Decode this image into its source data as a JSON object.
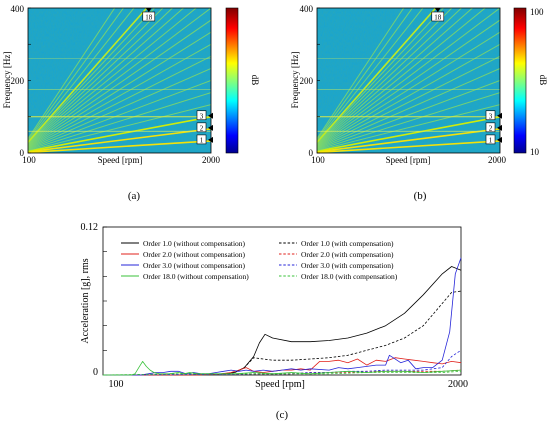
{
  "chart_data": [
    {
      "type": "heatmap",
      "panel_label": "(a)",
      "xlabel": "Speed [rpm]",
      "ylabel": "Frequency [Hz]",
      "xlim": [
        100,
        2000
      ],
      "ylim": [
        0,
        400
      ],
      "x_ticks": [
        "100",
        "2000"
      ],
      "y_ticks": [
        "0",
        "200",
        "400"
      ],
      "colorbar": {
        "label": "dB",
        "ticks": [],
        "colormap": "jet"
      },
      "order_markers": [
        "1",
        "2",
        "3",
        "18"
      ]
    },
    {
      "type": "heatmap",
      "panel_label": "(b)",
      "xlabel": "Speed [rpm]",
      "ylabel": "Frequency [Hz]",
      "xlim": [
        100,
        2000
      ],
      "ylim": [
        0,
        400
      ],
      "x_ticks": [
        "100",
        "2000"
      ],
      "y_ticks": [
        "0",
        "200",
        "400"
      ],
      "colorbar": {
        "label": "dB",
        "ticks": [
          "10",
          "100"
        ],
        "colormap": "jet"
      },
      "order_markers": [
        "1",
        "2",
        "3",
        "18"
      ]
    },
    {
      "type": "line",
      "panel_label": "(c)",
      "xlabel": "Speed [rpm]",
      "ylabel": "Acceleration [g], rms",
      "xlim": [
        100,
        2000
      ],
      "ylim": [
        0,
        0.12
      ],
      "x_ticks": [
        "100",
        "2000"
      ],
      "y_ticks": [
        "0",
        "0.12"
      ],
      "legend_position": "top-left",
      "series": [
        {
          "name": "Order 1.0 (without compensation)",
          "color": "#000000",
          "dashed": false,
          "x": [
            100,
            500,
            700,
            800,
            850,
            900,
            930,
            960,
            1000,
            1100,
            1200,
            1300,
            1400,
            1500,
            1600,
            1700,
            1800,
            1900,
            1950,
            2000
          ],
          "y": [
            0,
            0,
            0.0005,
            0.002,
            0.006,
            0.015,
            0.026,
            0.033,
            0.03,
            0.027,
            0.027,
            0.028,
            0.03,
            0.034,
            0.04,
            0.05,
            0.065,
            0.082,
            0.088,
            0.085
          ]
        },
        {
          "name": "Order 1.0 (with compensation)",
          "color": "#000000",
          "dashed": true,
          "x": [
            100,
            500,
            700,
            800,
            850,
            900,
            950,
            1000,
            1100,
            1200,
            1300,
            1400,
            1500,
            1600,
            1700,
            1800,
            1900,
            1950,
            2000
          ],
          "y": [
            0,
            0,
            0.0005,
            0.002,
            0.006,
            0.014,
            0.013,
            0.012,
            0.012,
            0.013,
            0.014,
            0.016,
            0.02,
            0.024,
            0.03,
            0.04,
            0.058,
            0.067,
            0.068
          ]
        },
        {
          "name": "Order 2.0 (without compensation)",
          "color": "#e0201b",
          "dashed": false,
          "x": [
            100,
            600,
            700,
            780,
            820,
            860,
            900,
            950,
            1000,
            1050,
            1100,
            1150,
            1200,
            1250,
            1300,
            1350,
            1400,
            1450,
            1500,
            1550,
            1600,
            1650,
            1700,
            1750,
            1800,
            1850,
            1900,
            1950,
            2000
          ],
          "y": [
            0,
            0,
            0.0005,
            0.002,
            0.004,
            0.006,
            0.003,
            0.002,
            0.003,
            0.004,
            0.004,
            0.005,
            0.004,
            0.011,
            0.011,
            0.012,
            0.01,
            0.013,
            0.008,
            0.012,
            0.011,
            0.014,
            0.013,
            0.012,
            0.011,
            0.01,
            0.009,
            0.011,
            0.01
          ]
        },
        {
          "name": "Order 2.0 (with compensation)",
          "color": "#e0201b",
          "dashed": true,
          "x": [
            100,
            800,
            900,
            1000,
            1100,
            1200,
            1300,
            1400,
            1500,
            1600,
            1700,
            1800,
            1900,
            2000
          ],
          "y": [
            0,
            0.0005,
            0.001,
            0.001,
            0.001,
            0.002,
            0.002,
            0.002,
            0.003,
            0.003,
            0.003,
            0.003,
            0.003,
            0.004
          ]
        },
        {
          "name": "Order 3.0 (without compensation)",
          "color": "#2626d9",
          "dashed": false,
          "x": [
            100,
            300,
            340,
            380,
            420,
            460,
            500,
            540,
            580,
            620,
            660,
            700,
            740,
            780,
            820,
            860,
            900,
            950,
            1000,
            1050,
            1100,
            1150,
            1200,
            1300,
            1350,
            1400,
            1450,
            1500,
            1550,
            1600,
            1620,
            1640,
            1680,
            1720,
            1760,
            1800,
            1850,
            1900,
            1940,
            1970,
            2000
          ],
          "y": [
            0,
            0,
            0.001,
            0.002,
            0.002,
            0.003,
            0.003,
            0.001,
            0.002,
            0.001,
            0.001,
            0.002,
            0.003,
            0.004,
            0.003,
            0.004,
            0.003,
            0.004,
            0.003,
            0.004,
            0.005,
            0.004,
            0.005,
            0.004,
            0.006,
            0.005,
            0.006,
            0.007,
            0.008,
            0.008,
            0.016,
            0.014,
            0.01,
            0.012,
            0.005,
            0.006,
            0.006,
            0.012,
            0.035,
            0.082,
            0.095
          ]
        },
        {
          "name": "Order 3.0 (with compensation)",
          "color": "#2626d9",
          "dashed": true,
          "x": [
            100,
            800,
            900,
            1000,
            1100,
            1200,
            1300,
            1400,
            1500,
            1600,
            1700,
            1800,
            1900,
            1950,
            2000
          ],
          "y": [
            0,
            0.0005,
            0.001,
            0.001,
            0.001,
            0.002,
            0.002,
            0.003,
            0.003,
            0.004,
            0.004,
            0.004,
            0.006,
            0.015,
            0.02
          ]
        },
        {
          "name": "Order 18.0 (without compensation)",
          "color": "#39c23a",
          "dashed": false,
          "x": [
            100,
            250,
            270,
            290,
            310,
            330,
            350,
            370,
            400,
            450,
            500,
            530,
            560,
            600,
            650,
            700,
            800,
            900,
            1000,
            1100,
            1200,
            1300,
            1400,
            1500,
            1600,
            1700,
            1800,
            1900,
            2000
          ],
          "y": [
            0,
            0,
            0.001,
            0.006,
            0.011,
            0.007,
            0.004,
            0.002,
            0.001,
            0.001,
            0.002,
            0.001,
            0.002,
            0.001,
            0.001,
            0.001,
            0.001,
            0.002,
            0.001,
            0.002,
            0.001,
            0.002,
            0.003,
            0.002,
            0.003,
            0.003,
            0.002,
            0.003,
            0.004
          ]
        },
        {
          "name": "Order 18.0 (with compensation)",
          "color": "#39c23a",
          "dashed": true,
          "x": [
            100,
            300,
            500,
            700,
            900,
            1100,
            1300,
            1500,
            1700,
            1900,
            2000
          ],
          "y": [
            0,
            0.0005,
            0.001,
            0.001,
            0.001,
            0.001,
            0.001,
            0.002,
            0.002,
            0.002,
            0.003
          ]
        }
      ]
    }
  ]
}
